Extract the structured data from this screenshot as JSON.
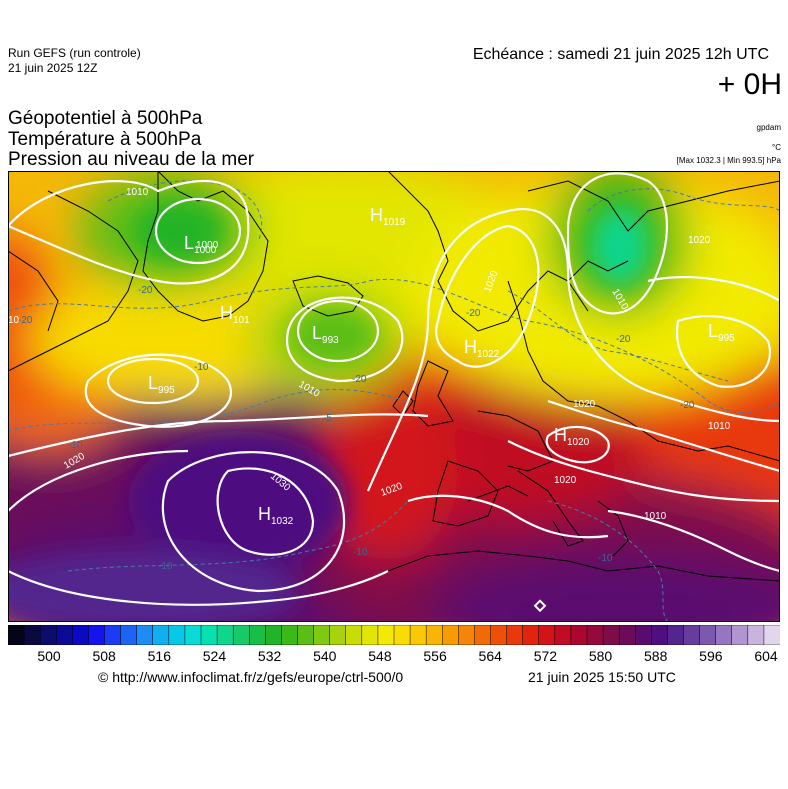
{
  "header": {
    "run_title": "Run GEFS (run controle)",
    "run_date": "21 juin 2025 12Z",
    "echeance": "Echéance : samedi 21 juin 2025 12h UTC",
    "offset": "+ 0H",
    "fields": [
      "Géopotentiel à 500hPa",
      "Température à 500hPa",
      "Pression au niveau de la mer"
    ],
    "unit_geopotential": "gpdam",
    "unit_temperature": "°C",
    "max_min": "[Max 1032.3 | Min 993.5] hPa"
  },
  "colorbar": {
    "labels": [
      "500",
      "508",
      "516",
      "524",
      "532",
      "540",
      "548",
      "556",
      "564",
      "572",
      "580",
      "588",
      "596",
      "604"
    ],
    "colors": [
      "#05051a",
      "#0a0a40",
      "#0c0c6a",
      "#0b0b96",
      "#0a0ac4",
      "#1414ec",
      "#1c3cf4",
      "#1e64f4",
      "#1e8cf4",
      "#10b0f0",
      "#08c8e8",
      "#08dcd4",
      "#08e0b0",
      "#10d68c",
      "#16ca6a",
      "#18be48",
      "#22b428",
      "#3cb818",
      "#5cbe14",
      "#82c810",
      "#a8d20c",
      "#c8dc08",
      "#e2e606",
      "#f2ea04",
      "#f8dc04",
      "#fac804",
      "#fab404",
      "#f89c04",
      "#f68406",
      "#f26a08",
      "#ee500a",
      "#e8380c",
      "#e0240e",
      "#d2141a",
      "#c00c24",
      "#aa0830",
      "#940a3c",
      "#7e0c48",
      "#6a0c5a",
      "#5a0c6e",
      "#4e1080",
      "#52268e",
      "#663c9c",
      "#7c58ae",
      "#9676c0",
      "#b294d0",
      "#cab4de",
      "#e2d6ec"
    ]
  },
  "map": {
    "centers": [
      {
        "letter": "L",
        "value": "1000"
      },
      {
        "letter": "H",
        "value": "1019"
      },
      {
        "letter": "H",
        "value": "101"
      },
      {
        "letter": "L",
        "value": "993"
      },
      {
        "letter": "H",
        "value": "1022"
      },
      {
        "letter": "L",
        "value": "995"
      },
      {
        "letter": "L",
        "value": "995"
      },
      {
        "letter": "H",
        "value": "1020"
      },
      {
        "letter": "H",
        "value": "1032"
      }
    ],
    "isobar_labels": [
      "1010",
      "1000",
      "1020",
      "1010",
      "1020",
      "1020",
      "1010",
      "1030",
      "1020",
      "1020",
      "1010",
      "1010",
      "10",
      "1020"
    ],
    "temp_labels": [
      "-20",
      "-10",
      "-20",
      "-20",
      "-20",
      "-20",
      "-10",
      "-20",
      "-10",
      "-10",
      "-5",
      "-10"
    ]
  },
  "footer": {
    "source": "© http://www.infoclimat.fr/z/gefs/europe/ctrl-500/0",
    "created": "21 juin 2025 15:50 UTC"
  }
}
